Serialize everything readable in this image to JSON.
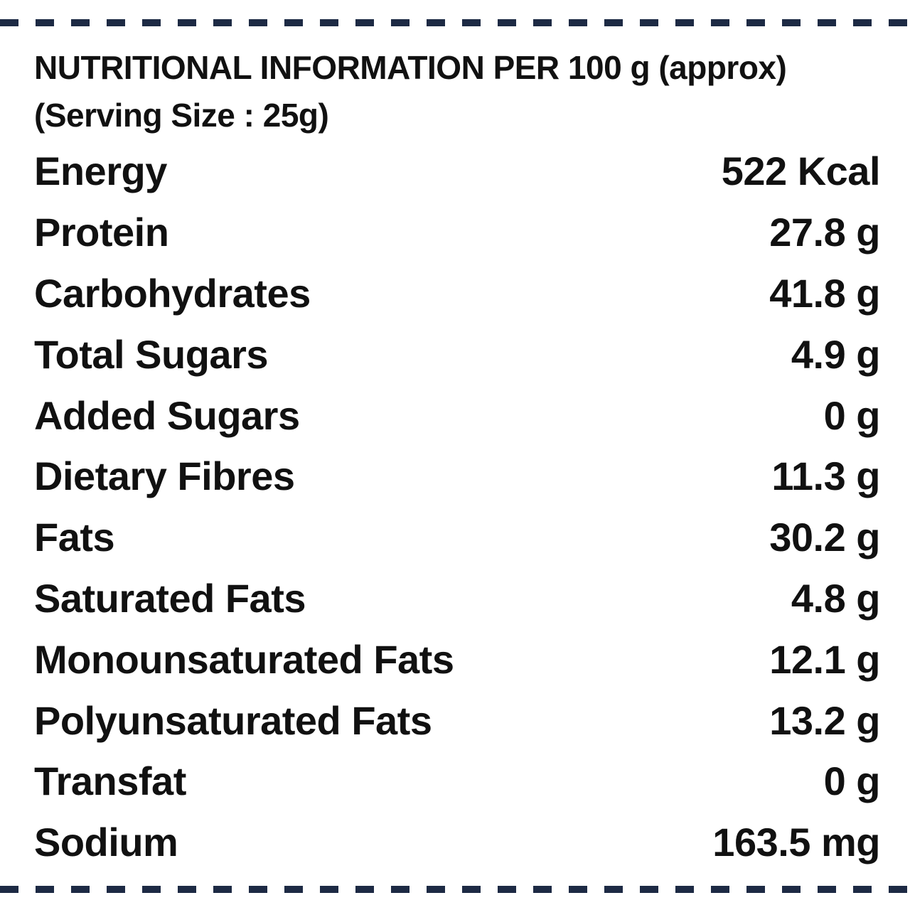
{
  "header": {
    "line1": "NUTRITIONAL INFORMATION PER 100 g (approx)",
    "line2": "(Serving Size : 25g)"
  },
  "rows": [
    {
      "label": "Energy",
      "value": "522 Kcal"
    },
    {
      "label": "Protein",
      "value": "27.8 g"
    },
    {
      "label": "Carbohydrates",
      "value": "41.8 g"
    },
    {
      "label": "Total Sugars",
      "value": "4.9 g"
    },
    {
      "label": "Added Sugars",
      "value": "0 g"
    },
    {
      "label": "Dietary Fibres",
      "value": "11.3 g"
    },
    {
      "label": "Fats",
      "value": "30.2 g"
    },
    {
      "label": "Saturated Fats",
      "value": "4.8 g"
    },
    {
      "label": "Monounsaturated Fats",
      "value": "12.1 g"
    },
    {
      "label": "Polyunsaturated Fats",
      "value": "13.2 g"
    },
    {
      "label": "Transfat",
      "value": "0 g"
    },
    {
      "label": "Sodium",
      "value": "163.5 mg"
    }
  ],
  "colors": {
    "text": "#111111",
    "border_dashes": "#1d2a44",
    "background": "#ffffff"
  }
}
